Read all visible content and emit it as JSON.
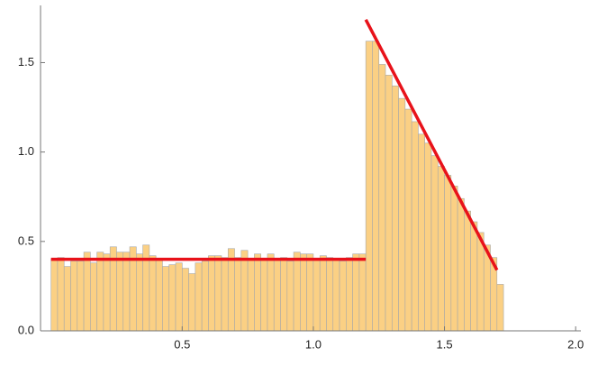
{
  "chart_data": {
    "type": "histogram",
    "bins": [
      0,
      0.025,
      0.05,
      0.075,
      0.1,
      0.125,
      0.15,
      0.175,
      0.2,
      0.225,
      0.25,
      0.275,
      0.3,
      0.325,
      0.35,
      0.375,
      0.4,
      0.425,
      0.45,
      0.475,
      0.5,
      0.525,
      0.55,
      0.575,
      0.6,
      0.625,
      0.65,
      0.675,
      0.7,
      0.725,
      0.75,
      0.775,
      0.8,
      0.825,
      0.85,
      0.875,
      0.9,
      0.925,
      0.95,
      0.975,
      1,
      1.025,
      1.05,
      1.075,
      1.1,
      1.125,
      1.15,
      1.175,
      1.2,
      1.225,
      1.25,
      1.275,
      1.3,
      1.325,
      1.35,
      1.375,
      1.4,
      1.425,
      1.45,
      1.475,
      1.5,
      1.525,
      1.55,
      1.575,
      1.6,
      1.625,
      1.65,
      1.675,
      1.7,
      1.725
    ],
    "values": [
      0.4,
      0.41,
      0.36,
      0.39,
      0.39,
      0.44,
      0.38,
      0.44,
      0.43,
      0.47,
      0.44,
      0.44,
      0.47,
      0.43,
      0.48,
      0.42,
      0.4,
      0.36,
      0.37,
      0.38,
      0.35,
      0.32,
      0.38,
      0.39,
      0.42,
      0.42,
      0.41,
      0.46,
      0.41,
      0.45,
      0.4,
      0.43,
      0.4,
      0.43,
      0.4,
      0.41,
      0.39,
      0.44,
      0.43,
      0.43,
      0.4,
      0.42,
      0.41,
      0.4,
      0.39,
      0.41,
      0.43,
      0.43,
      1.62,
      1.62,
      1.49,
      1.43,
      1.37,
      1.3,
      1.24,
      1.17,
      1.1,
      1.05,
      0.98,
      0.92,
      0.87,
      0.81,
      0.74,
      0.67,
      0.61,
      0.55,
      0.48,
      0.41,
      0.26
    ],
    "color": "#fbd084",
    "lines": [
      {
        "color": "#e8121a",
        "x": [
          0,
          1.2
        ],
        "values": [
          0.4,
          0.4
        ]
      },
      {
        "color": "#e8121a",
        "x": [
          1.2,
          1.7
        ],
        "values": [
          1.74,
          0.34
        ]
      }
    ],
    "xlim": [
      -0.04,
      2.02
    ],
    "ylim": [
      0,
      1.82
    ],
    "xticks": [
      0.5,
      {
        "value": 1,
        "label": "1.0"
      },
      1.5,
      {
        "value": 2,
        "label": "2.0"
      }
    ],
    "yticks": [
      {
        "value": 0,
        "label": "0.0"
      },
      0.5,
      {
        "value": 1,
        "label": "1.0"
      },
      1.5
    ]
  }
}
